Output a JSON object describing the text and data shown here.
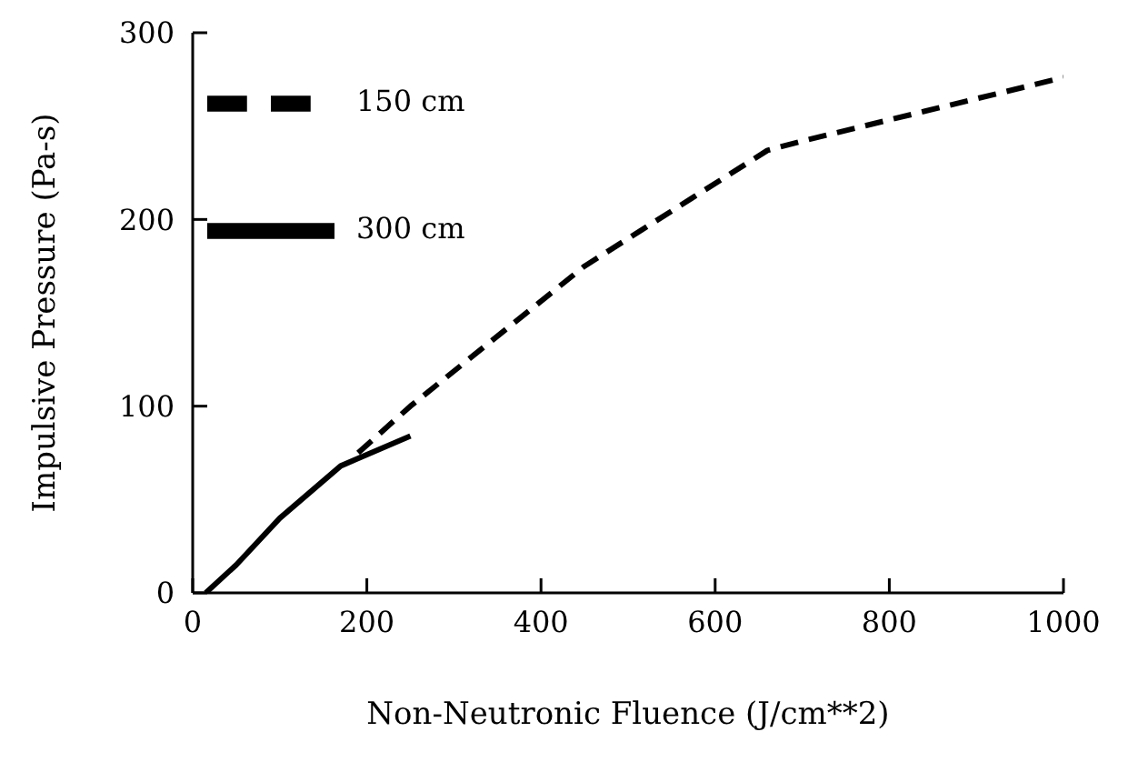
{
  "chart_data": {
    "type": "line",
    "xlabel": "Non-Neutronic Fluence (J/cm**2)",
    "ylabel": "Impulsive Pressure (Pa-s)",
    "xlim": [
      0,
      1000
    ],
    "ylim": [
      0,
      300
    ],
    "xticks": [
      0,
      200,
      400,
      600,
      800,
      1000
    ],
    "yticks": [
      0,
      100,
      200,
      300
    ],
    "legend": "top left",
    "grid": false,
    "marker": "none",
    "series": [
      {
        "name": "300 cm",
        "color": "#000000",
        "line_style": "solid",
        "x": [
          15,
          50,
          100,
          170,
          250
        ],
        "values": [
          0,
          15,
          40,
          68,
          84
        ]
      },
      {
        "name": "150 cm",
        "color": "#000000",
        "line_style": "dashed",
        "x": [
          190,
          250,
          450,
          660,
          700,
          1000
        ],
        "values": [
          75,
          100,
          175,
          237,
          242,
          276
        ]
      }
    ]
  }
}
